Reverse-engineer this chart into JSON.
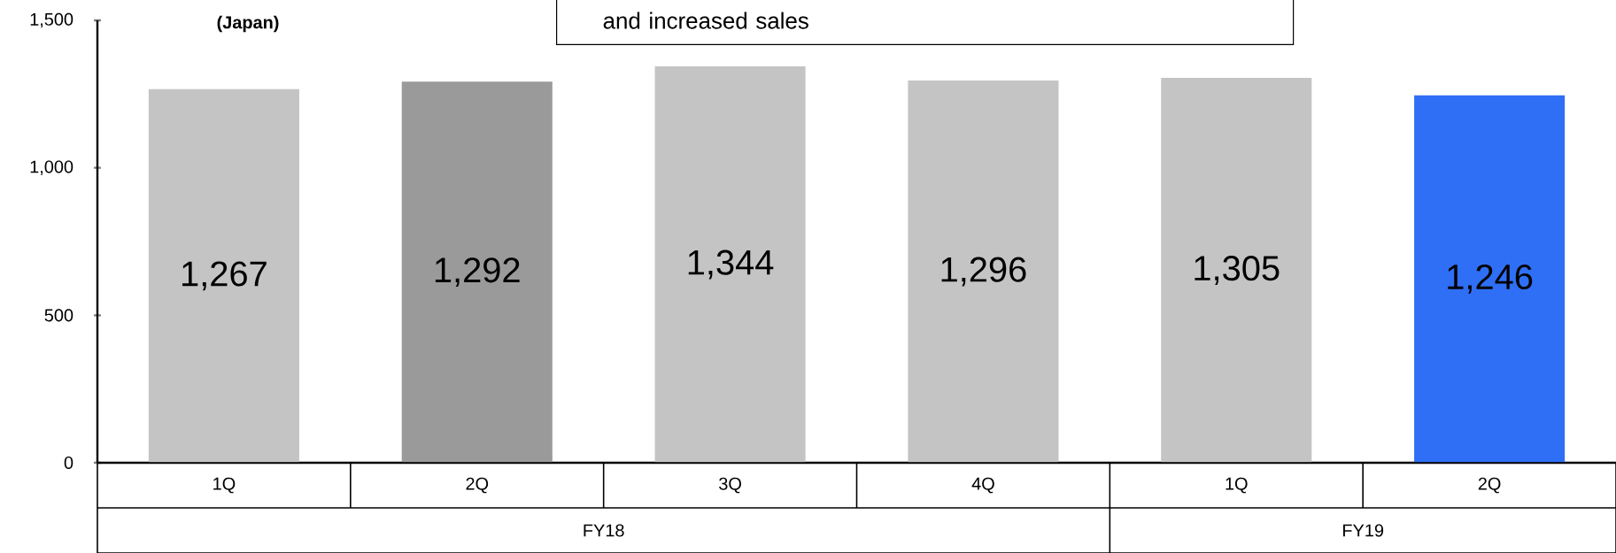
{
  "chart_data": {
    "type": "bar",
    "categories": [
      "1Q",
      "2Q",
      "3Q",
      "4Q",
      "1Q",
      "2Q"
    ],
    "values": [
      1267,
      1292,
      1344,
      1296,
      1305,
      1246
    ],
    "value_labels": [
      "1,267",
      "1,292",
      "1,344",
      "1,296",
      "1,305",
      "1,246"
    ],
    "colors": [
      "#c4c4c4",
      "#9a9a9a",
      "#c4c4c4",
      "#c4c4c4",
      "#c4c4c4",
      "#2f6ff5"
    ],
    "ylim": [
      0,
      1500
    ],
    "yticks": [
      0,
      {
        "value": 500,
        "label": "500"
      },
      {
        "value": 1000,
        "label": "1,000"
      },
      {
        "value": 1500,
        "label": "1,500"
      }
    ],
    "annotations": [
      "(Japan)",
      "and increased sales",
      "FY18",
      "FY19"
    ]
  }
}
